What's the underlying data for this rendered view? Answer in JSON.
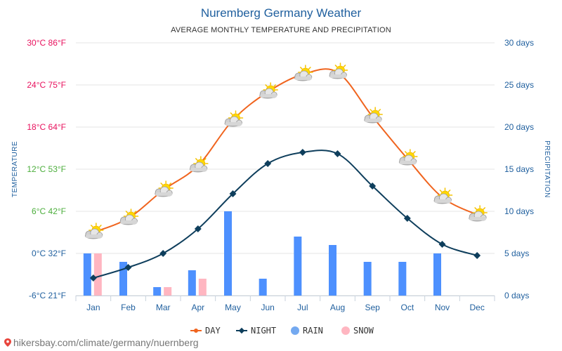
{
  "chart_data": {
    "type": "line",
    "title": "Nuremberg Germany Weather",
    "subtitle": "AVERAGE MONTHLY TEMPERATURE AND PRECIPITATION",
    "ylabel_left": "TEMPERATURE",
    "ylabel_right": "PRECIPITATION",
    "categories": [
      "Jan",
      "Feb",
      "Mar",
      "Apr",
      "May",
      "Jun",
      "Jul",
      "Aug",
      "Sep",
      "Oct",
      "Nov",
      "Dec"
    ],
    "ylim_left": [
      -6,
      30
    ],
    "ylim_right": [
      0,
      30
    ],
    "left_ticks": [
      {
        "value": 30,
        "label": "30°C 86°F",
        "color": "#e8115d"
      },
      {
        "value": 24,
        "label": "24°C 75°F",
        "color": "#e8115d"
      },
      {
        "value": 18,
        "label": "18°C 64°F",
        "color": "#e8115d"
      },
      {
        "value": 12,
        "label": "12°C 53°F",
        "color": "#4cae3c"
      },
      {
        "value": 6,
        "label": "6°C 42°F",
        "color": "#4cae3c"
      },
      {
        "value": 0,
        "label": "0°C 32°F",
        "color": "#1f5f9e"
      },
      {
        "value": -6,
        "label": "-6°C 21°F",
        "color": "#1f5f9e"
      }
    ],
    "right_ticks": [
      {
        "value": 30,
        "label": "30 days"
      },
      {
        "value": 25,
        "label": "25 days"
      },
      {
        "value": 20,
        "label": "20 days"
      },
      {
        "value": 15,
        "label": "15 days"
      },
      {
        "value": 10,
        "label": "10 days"
      },
      {
        "value": 5,
        "label": "5 days"
      },
      {
        "value": 0,
        "label": "0 days"
      }
    ],
    "series": [
      {
        "name": "DAY",
        "kind": "line",
        "axis": "left",
        "color": "#f0641e",
        "values": [
          3,
          5,
          9,
          12.5,
          19,
          23,
          25.5,
          25.8,
          19.5,
          13.5,
          8,
          5.5
        ]
      },
      {
        "name": "NIGHT",
        "kind": "line",
        "axis": "left",
        "color": "#0e3e5c",
        "values": [
          -3.5,
          -2,
          0,
          3.5,
          8.5,
          12.8,
          14.4,
          14.2,
          9.6,
          5,
          1.3,
          -0.3
        ]
      },
      {
        "name": "RAIN",
        "kind": "bar",
        "axis": "right",
        "color": "#4d90fe",
        "values": [
          5,
          4,
          1,
          3,
          10,
          2,
          7,
          6,
          4,
          4,
          5,
          0
        ]
      },
      {
        "name": "SNOW",
        "kind": "bar",
        "axis": "right",
        "color": "#ffb6c1",
        "values": [
          5,
          0,
          1,
          2,
          0,
          0,
          0,
          0,
          0,
          0,
          0,
          0
        ]
      }
    ],
    "legend": [
      {
        "name": "DAY",
        "color": "#f0641e"
      },
      {
        "name": "NIGHT",
        "color": "#0e3e5c"
      },
      {
        "name": "RAIN",
        "color": "#74a9f0"
      },
      {
        "name": "SNOW",
        "color": "#ffb6c1"
      }
    ],
    "legend_position": "bottom-center",
    "grid": true
  },
  "icons": {
    "weather": "partly-cloudy-icon",
    "location": "location-pin-icon"
  },
  "footer": {
    "text": "hikersbay.com/climate/germany/nuernberg"
  }
}
